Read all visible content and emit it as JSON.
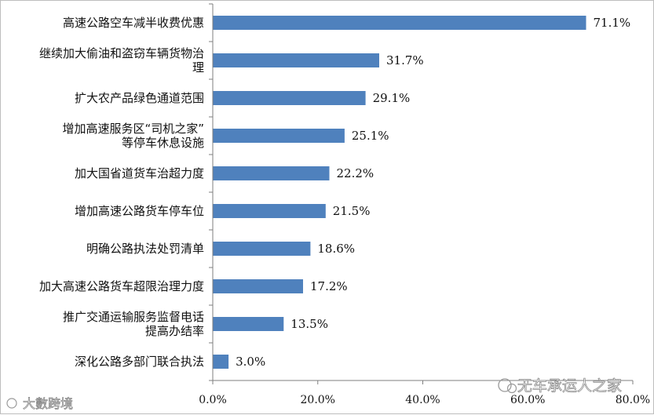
{
  "chart_data": {
    "type": "bar",
    "orientation": "horizontal",
    "categories": [
      [
        "高速公路空车减半收费优惠"
      ],
      [
        "继续加大偷油和盗窃车辆货物治",
        "理"
      ],
      [
        "扩大农产品绿色通道范围"
      ],
      [
        "增加高速服务区“司机之家”",
        "等停车休息设施"
      ],
      [
        "加大国省道货车治超力度"
      ],
      [
        "增加高速公路货车停车位"
      ],
      [
        "明确公路执法处罚清单"
      ],
      [
        "加大高速公路货车超限治理力度"
      ],
      [
        "推广交通运输服务监督电话",
        "提高办结率"
      ],
      [
        "深化公路多部门联合执法"
      ]
    ],
    "values": [
      71.1,
      31.7,
      29.1,
      25.1,
      22.2,
      21.5,
      18.6,
      17.2,
      13.5,
      3.0
    ],
    "value_labels": [
      "71.1%",
      "31.7%",
      "29.1%",
      "25.1%",
      "22.2%",
      "21.5%",
      "18.6%",
      "17.2%",
      "13.5%",
      "3.0%"
    ],
    "xlim": [
      0,
      80
    ],
    "xticks": [
      0,
      20,
      40,
      60,
      80
    ],
    "xtick_labels": [
      "0.0%",
      "20.0%",
      "40.0%",
      "60.0%",
      "80.0%"
    ],
    "bar_color": "#4f81bd",
    "title": "",
    "xlabel": "",
    "ylabel": "",
    "grid": false,
    "legend": "none"
  },
  "watermarks": {
    "left": "大數跨境",
    "right": "无车承运人之家"
  }
}
